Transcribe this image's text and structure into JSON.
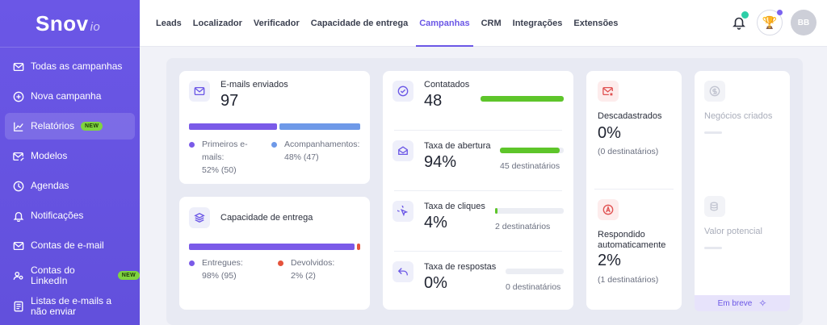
{
  "brand": {
    "name": "Snov",
    "suffix": "io"
  },
  "sidebar": {
    "items": [
      {
        "label": "Todas as campanhas",
        "icon": "mail-icon"
      },
      {
        "label": "Nova campanha",
        "icon": "plus-circle-icon"
      },
      {
        "label": "Relatórios",
        "icon": "chart-icon",
        "badge": "NEW",
        "active": true
      },
      {
        "label": "Modelos",
        "icon": "mail-edit-icon"
      },
      {
        "label": "Agendas",
        "icon": "clock-icon"
      },
      {
        "label": "Notificações",
        "icon": "bell-icon"
      },
      {
        "label": "Contas de e-mail",
        "icon": "mail-account-icon"
      },
      {
        "label": "Contas do LinkedIn",
        "icon": "users-icon",
        "badge": "NEW"
      },
      {
        "label": "Listas de e-mails a não enviar",
        "icon": "list-icon"
      }
    ]
  },
  "nav": {
    "items": [
      "Leads",
      "Localizador",
      "Verificador",
      "Capacidade de entrega",
      "Campanhas",
      "CRM",
      "Integrações",
      "Extensões"
    ],
    "active": "Campanhas"
  },
  "user": {
    "initials": "BB"
  },
  "sent": {
    "label": "E-mails enviados",
    "value": "97",
    "first": {
      "label1": "Primeiros e-",
      "label2": "mails:",
      "detail": "52% (50)",
      "color": "#7a5ae8",
      "fraction": 0.52
    },
    "follow": {
      "label": "Acompanhamentos:",
      "detail": "48% (47)",
      "color": "#6e99e8",
      "fraction": 0.48
    }
  },
  "delivery": {
    "label": "Capacidade de entrega",
    "delivered": {
      "label": "Entregues:",
      "detail": "98% (95)",
      "color": "#7a5ae8",
      "fraction": 0.98
    },
    "bounced": {
      "label": "Devolvidos:",
      "detail": "2% (2)",
      "color": "#e5533c",
      "fraction": 0.02
    }
  },
  "metrics": {
    "contacted": {
      "label": "Contatados",
      "value": "48",
      "fraction": 1.0
    },
    "open": {
      "label": "Taxa de abertura",
      "value": "94%",
      "sub": "45 destinatários",
      "fraction": 0.94
    },
    "clicks": {
      "label": "Taxa de cliques",
      "value": "4%",
      "sub": "2 destinatários",
      "fraction": 0.04
    },
    "replies": {
      "label": "Taxa de respostas",
      "value": "0%",
      "sub": "0 destinatários",
      "fraction": 0.0
    }
  },
  "unsub": {
    "label": "Descadastrados",
    "value": "0%",
    "sub": "(0 destinatários)"
  },
  "autoreply": {
    "label1": "Respondido",
    "label2": "automaticamente",
    "value": "2%",
    "sub": "(1 destinatários)"
  },
  "soon": {
    "deals": "Negócios criados",
    "potential": "Valor potencial",
    "button": "Em breve"
  },
  "colors": {
    "accent": "#6b57e6",
    "green": "#5ec52a",
    "red": "#e5533c"
  }
}
